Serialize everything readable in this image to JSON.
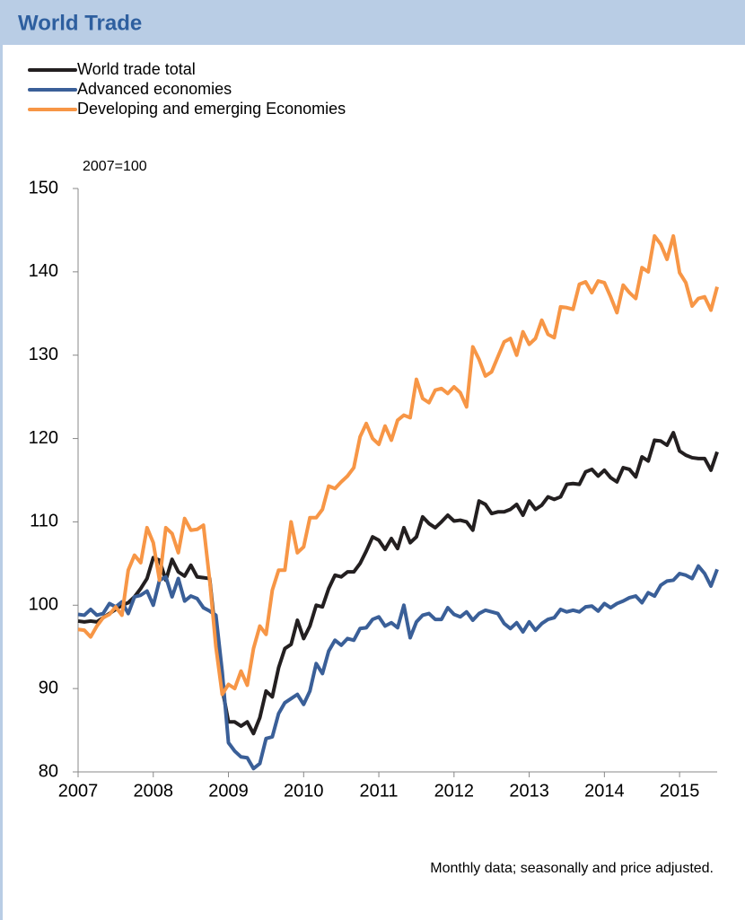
{
  "chart_data": {
    "type": "line",
    "title": "World Trade",
    "y_unit_note": "2007=100",
    "note": "Monthly data;  seasonally and price adjusted.",
    "x": [
      2007,
      2007.083,
      2007.167,
      2007.25,
      2007.333,
      2007.417,
      2007.5,
      2007.583,
      2007.667,
      2007.75,
      2007.833,
      2007.917,
      2008,
      2008.083,
      2008.167,
      2008.25,
      2008.333,
      2008.417,
      2008.5,
      2008.583,
      2008.667,
      2008.75,
      2008.833,
      2008.917,
      2009,
      2009.083,
      2009.167,
      2009.25,
      2009.333,
      2009.417,
      2009.5,
      2009.583,
      2009.667,
      2009.75,
      2009.833,
      2009.917,
      2010,
      2010.083,
      2010.167,
      2010.25,
      2010.333,
      2010.417,
      2010.5,
      2010.583,
      2010.667,
      2010.75,
      2010.833,
      2010.917,
      2011,
      2011.083,
      2011.167,
      2011.25,
      2011.333,
      2011.417,
      2011.5,
      2011.583,
      2011.667,
      2011.75,
      2011.833,
      2011.917,
      2012,
      2012.083,
      2012.167,
      2012.25,
      2012.333,
      2012.417,
      2012.5,
      2012.583,
      2012.667,
      2012.75,
      2012.833,
      2012.917,
      2013,
      2013.083,
      2013.167,
      2013.25,
      2013.333,
      2013.417,
      2013.5,
      2013.583,
      2013.667,
      2013.75,
      2013.833,
      2013.917,
      2014,
      2014.083,
      2014.167,
      2014.25,
      2014.333,
      2014.417,
      2014.5,
      2014.583,
      2014.667,
      2014.75,
      2014.833,
      2014.917,
      2015,
      2015.083,
      2015.167,
      2015.25,
      2015.333,
      2015.417,
      2015.5
    ],
    "series": [
      {
        "name": "World trade total",
        "color": "#231f20",
        "values": [
          98.1,
          98,
          98.1,
          98,
          98.5,
          99,
          99.5,
          100,
          100.3,
          101,
          102,
          103.2,
          105.7,
          105.4,
          103,
          105.5,
          104,
          103.5,
          104.8,
          103.4,
          103.3,
          103.2,
          96,
          90,
          86,
          86,
          85.5,
          86,
          84.6,
          86.5,
          89.7,
          89,
          92.5,
          94.8,
          95.3,
          98.2,
          96,
          97.5,
          100,
          99.8,
          102,
          103.6,
          103.4,
          104,
          104,
          105,
          106.5,
          108.2,
          107.8,
          106.7,
          108,
          106.8,
          109.3,
          107.5,
          108.2,
          110.6,
          109.8,
          109.3,
          110,
          110.8,
          110.1,
          110.2,
          110,
          109,
          112.5,
          112.1,
          111,
          111.2,
          111.2,
          111.5,
          112.1,
          110.8,
          112.5,
          111.5,
          112,
          113,
          112.7,
          113,
          114.5,
          114.6,
          114.5,
          116,
          116.3,
          115.5,
          116.2,
          115.3,
          114.8,
          116.5,
          116.3,
          115.4,
          117.8,
          117.3,
          119.8,
          119.7,
          119.2,
          120.7,
          118.5,
          118,
          117.7,
          117.6,
          117.6,
          116.2,
          118.4
        ]
      },
      {
        "name": "Advanced economies",
        "color": "#3a5f98",
        "values": [
          98.9,
          98.8,
          99.5,
          98.8,
          99,
          100.2,
          99.8,
          100.4,
          99,
          101,
          101.2,
          101.7,
          100,
          103,
          103.4,
          101,
          103.2,
          100.5,
          101.1,
          100.8,
          99.7,
          99.3,
          98.8,
          92,
          83.5,
          82.5,
          81.8,
          81.7,
          80.4,
          81,
          84,
          84.2,
          87,
          88.3,
          88.8,
          89.3,
          88.1,
          89.7,
          93,
          91.8,
          94.5,
          95.8,
          95.2,
          96,
          95.8,
          97.2,
          97.3,
          98.3,
          98.6,
          97.5,
          97.9,
          97.3,
          100,
          96.1,
          98,
          98.8,
          99,
          98.3,
          98.3,
          99.7,
          98.9,
          98.6,
          99.2,
          98.2,
          99,
          99.4,
          99.2,
          99,
          97.8,
          97.2,
          97.9,
          96.8,
          98,
          97,
          97.8,
          98.3,
          98.5,
          99.5,
          99.2,
          99.4,
          99.2,
          99.8,
          99.9,
          99.3,
          100.2,
          99.7,
          100.2,
          100.5,
          100.9,
          101.1,
          100.3,
          101.5,
          101.1,
          102.4,
          102.9,
          103,
          103.8,
          103.6,
          103.2,
          104.7,
          103.8,
          102.3,
          104.3
        ]
      },
      {
        "name": "Developing and emerging Economies",
        "color": "#f79646",
        "values": [
          97.1,
          97,
          96.2,
          97.5,
          98.5,
          98.9,
          99.8,
          98.8,
          104.2,
          106,
          105.1,
          109.3,
          107.5,
          103,
          109.3,
          108.6,
          106.3,
          110.4,
          109,
          109.1,
          109.6,
          103,
          95,
          89.3,
          90.5,
          90,
          92.1,
          90.4,
          94.8,
          97.5,
          96.5,
          101.8,
          104.2,
          104.2,
          110,
          106.3,
          107,
          110.5,
          110.5,
          111.5,
          114.3,
          114,
          114.8,
          115.5,
          116.5,
          120.2,
          121.8,
          120,
          119.3,
          121.5,
          119.8,
          122.2,
          122.8,
          122.5,
          127.1,
          124.8,
          124.3,
          125.8,
          126,
          125.4,
          126.2,
          125.5,
          123.8,
          131,
          129.5,
          127.5,
          128,
          129.8,
          131.6,
          132,
          130,
          132.8,
          131.3,
          132,
          134.2,
          132.5,
          132.1,
          135.8,
          135.7,
          135.5,
          138.5,
          138.8,
          137.5,
          138.9,
          138.7,
          137,
          135.1,
          138.4,
          137.5,
          136.8,
          140.5,
          140,
          144.3,
          143.3,
          141.5,
          144.3,
          139.9,
          138.7,
          135.9,
          136.8,
          137,
          135.4,
          138.2
        ]
      }
    ],
    "xlim": [
      2007,
      2015.5
    ],
    "xticks": [
      2007,
      2008,
      2009,
      2010,
      2011,
      2012,
      2013,
      2014,
      2015
    ],
    "ylim": [
      80,
      150
    ],
    "yticks": [
      80,
      90,
      100,
      110,
      120,
      130,
      140,
      150
    ],
    "grid": false,
    "legend": "top-left"
  }
}
